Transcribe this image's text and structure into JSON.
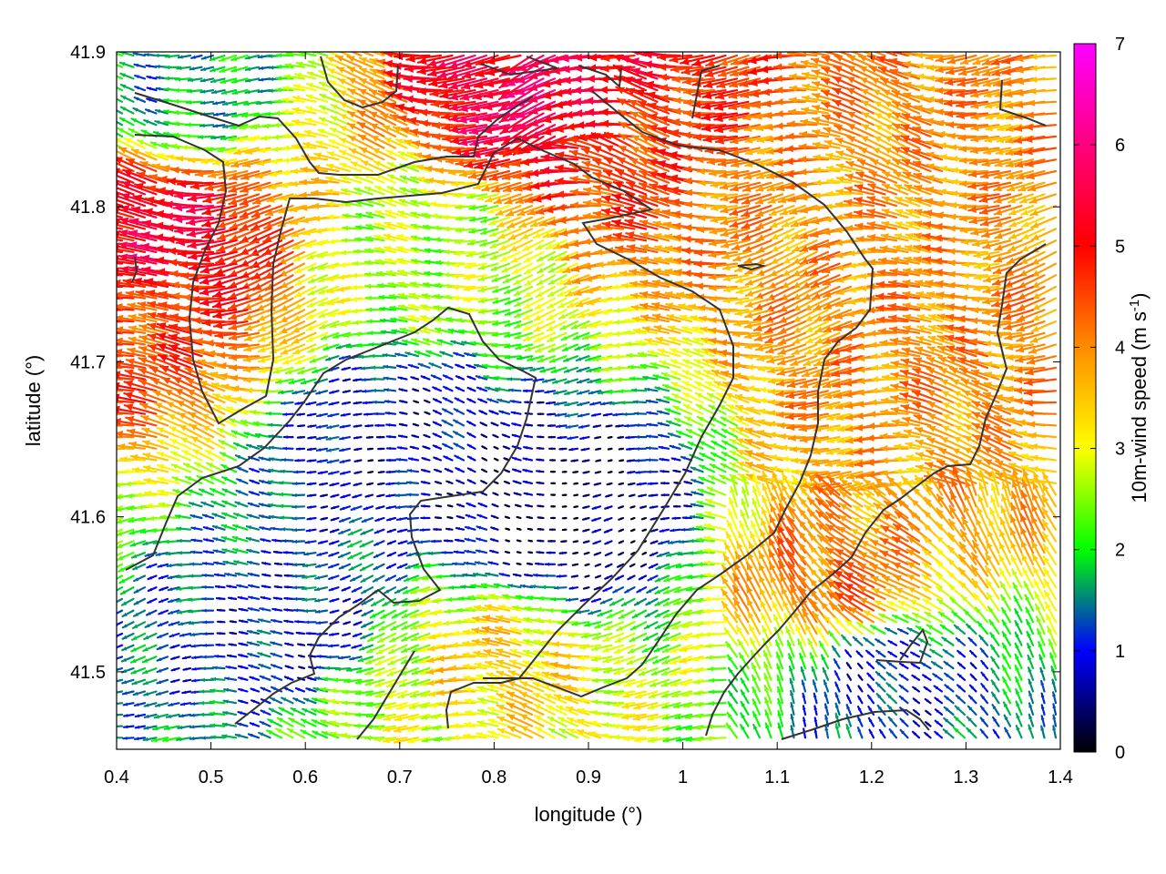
{
  "chart_data": {
    "type": "vector-field",
    "title": "",
    "xlabel": "longitude (°)",
    "ylabel": "latitude (°)",
    "xlim": [
      0.4,
      1.4
    ],
    "ylim": [
      41.45,
      41.9
    ],
    "x_ticks": [
      "0.4",
      "0.5",
      "0.6",
      "0.7",
      "0.8",
      "0.9",
      "1",
      "1.1",
      "1.2",
      "1.3",
      "1.4"
    ],
    "y_ticks": [
      "41.5",
      "41.6",
      "41.7",
      "41.8",
      "41.9"
    ],
    "colorbar": {
      "label": "10m-wind speed (m s",
      "label_superscript": "-1",
      "label_suffix": ")",
      "range": [
        0,
        7
      ],
      "ticks": [
        "0",
        "1",
        "2",
        "3",
        "4",
        "5",
        "6",
        "7"
      ],
      "colors": [
        "#000000",
        "#0000ff",
        "#00ff00",
        "#ffff00",
        "#ff8c00",
        "#ff0000",
        "#ff00ff"
      ]
    },
    "field_direction": "easterly (wind blowing toward west)",
    "speed_zones": [
      {
        "lon": 0.45,
        "lat": 41.78,
        "speed": 5.3
      },
      {
        "lon": 0.44,
        "lat": 41.72,
        "speed": 4.5
      },
      {
        "lon": 0.88,
        "lat": 41.87,
        "speed": 5.6
      },
      {
        "lon": 0.95,
        "lat": 41.84,
        "speed": 4.6
      },
      {
        "lon": 1.15,
        "lat": 41.8,
        "speed": 3.9
      },
      {
        "lon": 1.25,
        "lat": 41.7,
        "speed": 4.0
      },
      {
        "lon": 1.27,
        "lat": 41.62,
        "speed": 3.8
      },
      {
        "lon": 1.18,
        "lat": 41.55,
        "speed": 4.2
      },
      {
        "lon": 0.8,
        "lat": 41.5,
        "speed": 3.4
      },
      {
        "lon": 0.72,
        "lat": 41.48,
        "speed": 2.8
      },
      {
        "lon": 0.7,
        "lat": 41.65,
        "speed": 0.8
      },
      {
        "lon": 0.88,
        "lat": 41.6,
        "speed": 0.3
      },
      {
        "lon": 0.6,
        "lat": 41.52,
        "speed": 1.0
      },
      {
        "lon": 1.22,
        "lat": 41.5,
        "speed": 1.0
      },
      {
        "lon": 0.75,
        "lat": 41.77,
        "speed": 2.6
      },
      {
        "lon": 0.45,
        "lat": 41.88,
        "speed": 1.6
      }
    ],
    "grid": false
  }
}
